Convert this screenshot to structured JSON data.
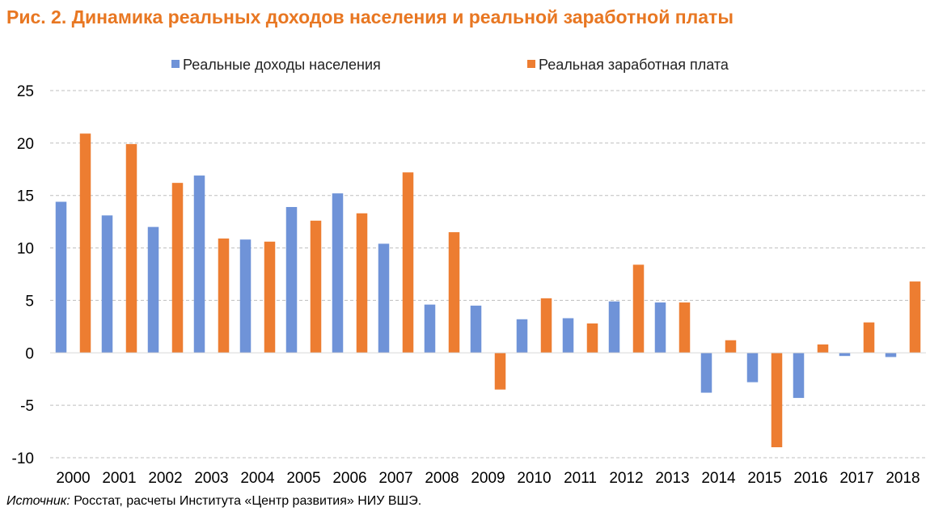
{
  "title": "Рис. 2. Динамика реальных доходов населения и реальной заработной платы",
  "source": {
    "label": "Источник:",
    "text": " Росстат, расчеты Института «Центр развития» НИУ ВШЭ."
  },
  "chart_data": {
    "type": "bar",
    "categories": [
      "2000",
      "2001",
      "2002",
      "2003",
      "2004",
      "2005",
      "2006",
      "2007",
      "2008",
      "2009",
      "2010",
      "2011",
      "2012",
      "2013",
      "2014",
      "2015",
      "2016",
      "2017",
      "2018"
    ],
    "series": [
      {
        "name": "Реальные доходы населения",
        "color": "#6f93d8",
        "values": [
          14.4,
          13.1,
          12.0,
          16.9,
          10.8,
          13.9,
          15.2,
          10.4,
          4.6,
          4.5,
          3.2,
          3.3,
          4.9,
          4.8,
          -3.8,
          -2.8,
          -4.3,
          -0.3,
          -0.4
        ]
      },
      {
        "name": "Реальная заработная плата",
        "color": "#ed7d31",
        "values": [
          20.9,
          19.9,
          16.2,
          10.9,
          10.6,
          12.6,
          13.3,
          17.2,
          11.5,
          -3.5,
          5.2,
          2.8,
          8.4,
          4.8,
          1.2,
          -9.0,
          0.8,
          2.9,
          6.8
        ]
      }
    ],
    "ylim": [
      -10,
      25
    ],
    "yticks": [
      25,
      20,
      15,
      10,
      5,
      0,
      -5,
      -10
    ],
    "grid": true,
    "legend": "top-center"
  }
}
